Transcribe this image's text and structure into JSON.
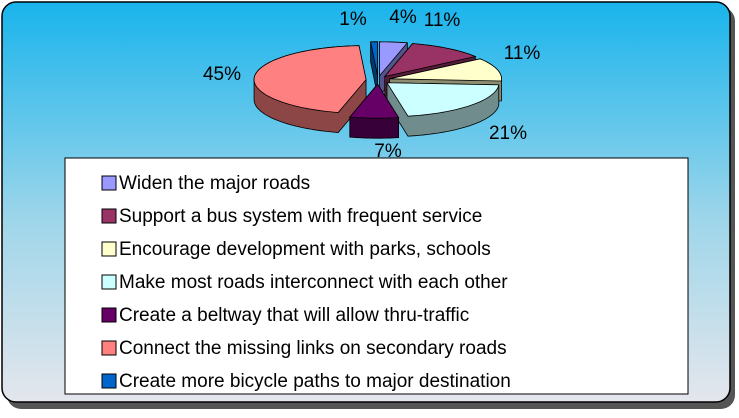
{
  "chart_data": {
    "type": "pie",
    "categories": [
      "Widen the major roads",
      "Support a bus system with frequent service",
      "Encourage development with parks, schools",
      "Make most roads interconnect with each other",
      "Create a beltway that will allow thru-traffic",
      "Connect the missing links on secondary roads",
      "Create more bicycle paths to major destination"
    ],
    "values": [
      4,
      11,
      11,
      21,
      7,
      45,
      1
    ],
    "value_labels": [
      "4%",
      "11%",
      "11%",
      "21%",
      "7%",
      "45%",
      "1%"
    ],
    "colors": [
      "#9999ff",
      "#993366",
      "#ffffcc",
      "#ccffff",
      "#660066",
      "#ff8080",
      "#0066cc"
    ],
    "legend": "bottom"
  }
}
